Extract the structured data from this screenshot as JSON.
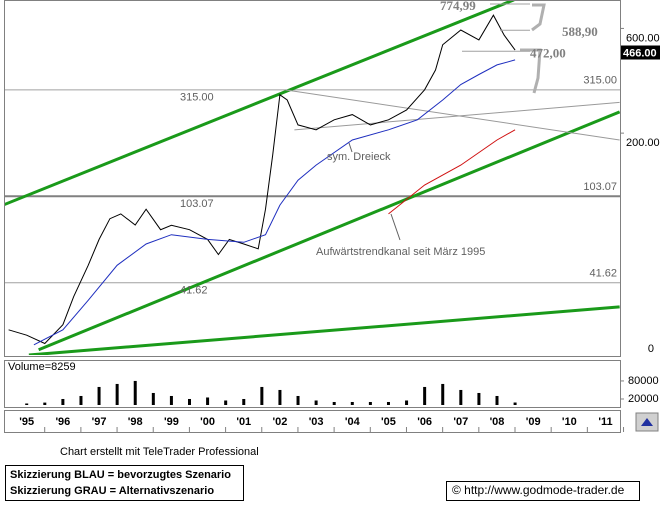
{
  "chart_data": {
    "type": "line",
    "log_scale": true,
    "xlim": [
      1994.4,
      2011.4
    ],
    "xticks": [
      {
        "value": 1995,
        "label": "'95"
      },
      {
        "value": 1996,
        "label": "'96"
      },
      {
        "value": 1997,
        "label": "'97"
      },
      {
        "value": 1998,
        "label": "'98"
      },
      {
        "value": 1999,
        "label": "'99"
      },
      {
        "value": 2000,
        "label": "'00"
      },
      {
        "value": 2001,
        "label": "'01"
      },
      {
        "value": 2002,
        "label": "'02"
      },
      {
        "value": 2003,
        "label": "'03"
      },
      {
        "value": 2004,
        "label": "'04"
      },
      {
        "value": 2005,
        "label": "'05"
      },
      {
        "value": 2006,
        "label": "'06"
      },
      {
        "value": 2007,
        "label": "'07"
      },
      {
        "value": 2008,
        "label": "'08"
      },
      {
        "value": 2009,
        "label": "'09"
      },
      {
        "value": 2010,
        "label": "'10"
      },
      {
        "value": 2011,
        "label": "'11"
      }
    ],
    "ylim": [
      19.5,
      800
    ],
    "yticks": [
      {
        "value": 200,
        "label": "200.00"
      },
      {
        "value": 600,
        "label": "600.00"
      }
    ],
    "y_bottom_label": "0",
    "series": [
      {
        "color": "#000000",
        "x": [
          1994.5,
          1995.0,
          1995.5,
          1996.0,
          1996.3,
          1996.7,
          1997.0,
          1997.3,
          1997.6,
          1998.0,
          1998.3,
          1998.7,
          1999.0,
          1999.5,
          2000.0,
          2000.3,
          2000.6,
          2001.0,
          2001.4,
          2001.6,
          2001.8,
          2002.0,
          2002.2,
          2002.5,
          2003.0,
          2003.5,
          2004.0,
          2004.5,
          2005.0,
          2005.5,
          2006.0,
          2006.3,
          2006.5,
          2007.0,
          2007.5,
          2007.9,
          2008.2,
          2008.5
        ],
        "values": [
          25.4,
          24,
          22,
          26.8,
          36,
          50,
          65.6,
          81.5,
          85.7,
          76.3,
          90,
          72.6,
          76,
          72.6,
          65.6,
          56,
          65.6,
          62.5,
          59.4,
          90,
          159,
          299,
          283,
          218,
          207,
          230,
          243,
          218,
          230,
          255,
          315,
          388,
          505,
          590,
          532,
          689,
          559,
          478
        ]
      },
      {
        "color": "#1f2fbf",
        "x": [
          1995.2,
          1996.0,
          1996.7,
          1997.5,
          1998.3,
          1999.0,
          2000.0,
          2001.0,
          2001.6,
          2002.0,
          2002.5,
          2003.0,
          2004.0,
          2005.0,
          2005.8,
          2006.5,
          2007.0,
          2007.5,
          2008.0,
          2008.5
        ],
        "values": [
          21.7,
          25.4,
          34.6,
          50,
          62.5,
          68.9,
          65.6,
          63.6,
          68.9,
          94,
          122,
          143,
          186,
          207,
          230,
          283,
          333,
          370,
          409,
          431
        ]
      },
      {
        "color": "#d01010",
        "x": [
          2005.0,
          2006.0,
          2007.0,
          2008.0,
          2008.5
        ],
        "values": [
          85.7,
          116,
          143,
          186,
          207
        ]
      }
    ],
    "last_price": {
      "value": 466,
      "label": "466.00"
    },
    "levels": [
      {
        "value": 315,
        "label": "315.00"
      },
      {
        "value": 103.07,
        "label": "103.07"
      },
      {
        "value": 41.62,
        "label": "41.62"
      }
    ],
    "targets": [
      {
        "value": 774.99,
        "label": "774,99"
      },
      {
        "value": 588.9,
        "label": "588,90"
      },
      {
        "value": 472,
        "label": "472,00"
      }
    ],
    "trendlines": [
      {
        "color": "#1a9a1a",
        "x": [
          1994.36,
          2008.47
        ],
        "values": [
          94.2,
          810
        ]
      },
      {
        "color": "#1a9a1a",
        "x": [
          1995.33,
          2011.39
        ],
        "values": [
          20.6,
          250
        ]
      },
      {
        "color": "#1a9a1a",
        "x": [
          1995.06,
          2011.39
        ],
        "values": [
          19.5,
          32.3
        ]
      },
      {
        "color": "#9a9a9a",
        "x": [
          2002.15,
          2011.39
        ],
        "values": [
          315,
          186
        ]
      },
      {
        "color": "#9a9a9a",
        "x": [
          2002.4,
          2011.39
        ],
        "values": [
          207,
          276
        ]
      }
    ],
    "annotations": [
      "sym. Dreieck",
      "Aufwärtstrendkanal seit März 1995"
    ],
    "volume": {
      "label": "Volume=8259",
      "color": "#000000",
      "ylim": [
        0,
        143000
      ],
      "yticks": [
        20000,
        80000
      ],
      "x": [
        1995.0,
        1995.5,
        1996.0,
        1996.5,
        1997.0,
        1997.5,
        1998.0,
        1998.5,
        1999.0,
        1999.5,
        2000.0,
        2000.5,
        2001.0,
        2001.5,
        2002.0,
        2002.5,
        2003.0,
        2003.5,
        2004.0,
        2004.5,
        2005.0,
        2005.5,
        2006.0,
        2006.5,
        2007.0,
        2007.5,
        2008.0,
        2008.5
      ],
      "values": [
        5000,
        8000,
        20000,
        30000,
        60000,
        70000,
        80000,
        40000,
        30000,
        20000,
        25000,
        15000,
        20000,
        60000,
        50000,
        30000,
        15000,
        10000,
        10000,
        10000,
        10000,
        15000,
        60000,
        70000,
        50000,
        40000,
        30000,
        8259
      ]
    }
  },
  "footer": {
    "credit": "Chart erstellt mit TeleTrader Professional",
    "legend": [
      "Skizzierung BLAU = bevorzugtes Szenario",
      "Skizzierung GRAU = Alternativszenario"
    ],
    "url": "© http://www.godmode-trader.de"
  }
}
